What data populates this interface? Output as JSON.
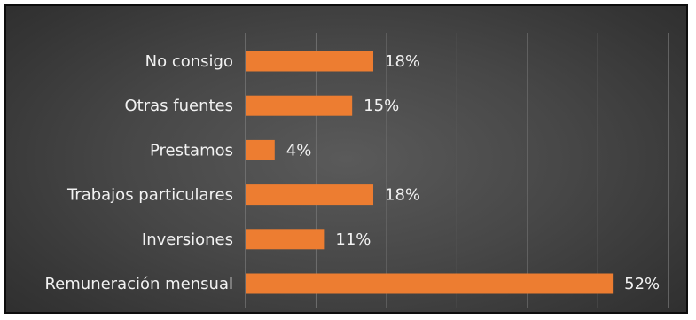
{
  "chart_data": {
    "type": "bar",
    "orientation": "horizontal",
    "title": "",
    "xlabel": "",
    "ylabel": "",
    "categories": [
      "No consigo",
      "Otras fuentes",
      "Prestamos",
      "Trabajos particulares",
      "Inversiones",
      "Remuneración mensual"
    ],
    "values": [
      18,
      15,
      4,
      18,
      11,
      52
    ],
    "value_labels": [
      "18%",
      "15%",
      "4%",
      "18%",
      "11%",
      "52%"
    ],
    "unit": "%",
    "xlim": [
      0,
      60
    ],
    "grid": true,
    "legend": "none",
    "colors": {
      "bar": "#ed7d31",
      "label_text": "#f2f2f2",
      "gridline": "#6e6e6e",
      "background_center": "#5a5a5a",
      "background_edge": "#2c2c2c",
      "frame": "#0d0d0d"
    }
  }
}
